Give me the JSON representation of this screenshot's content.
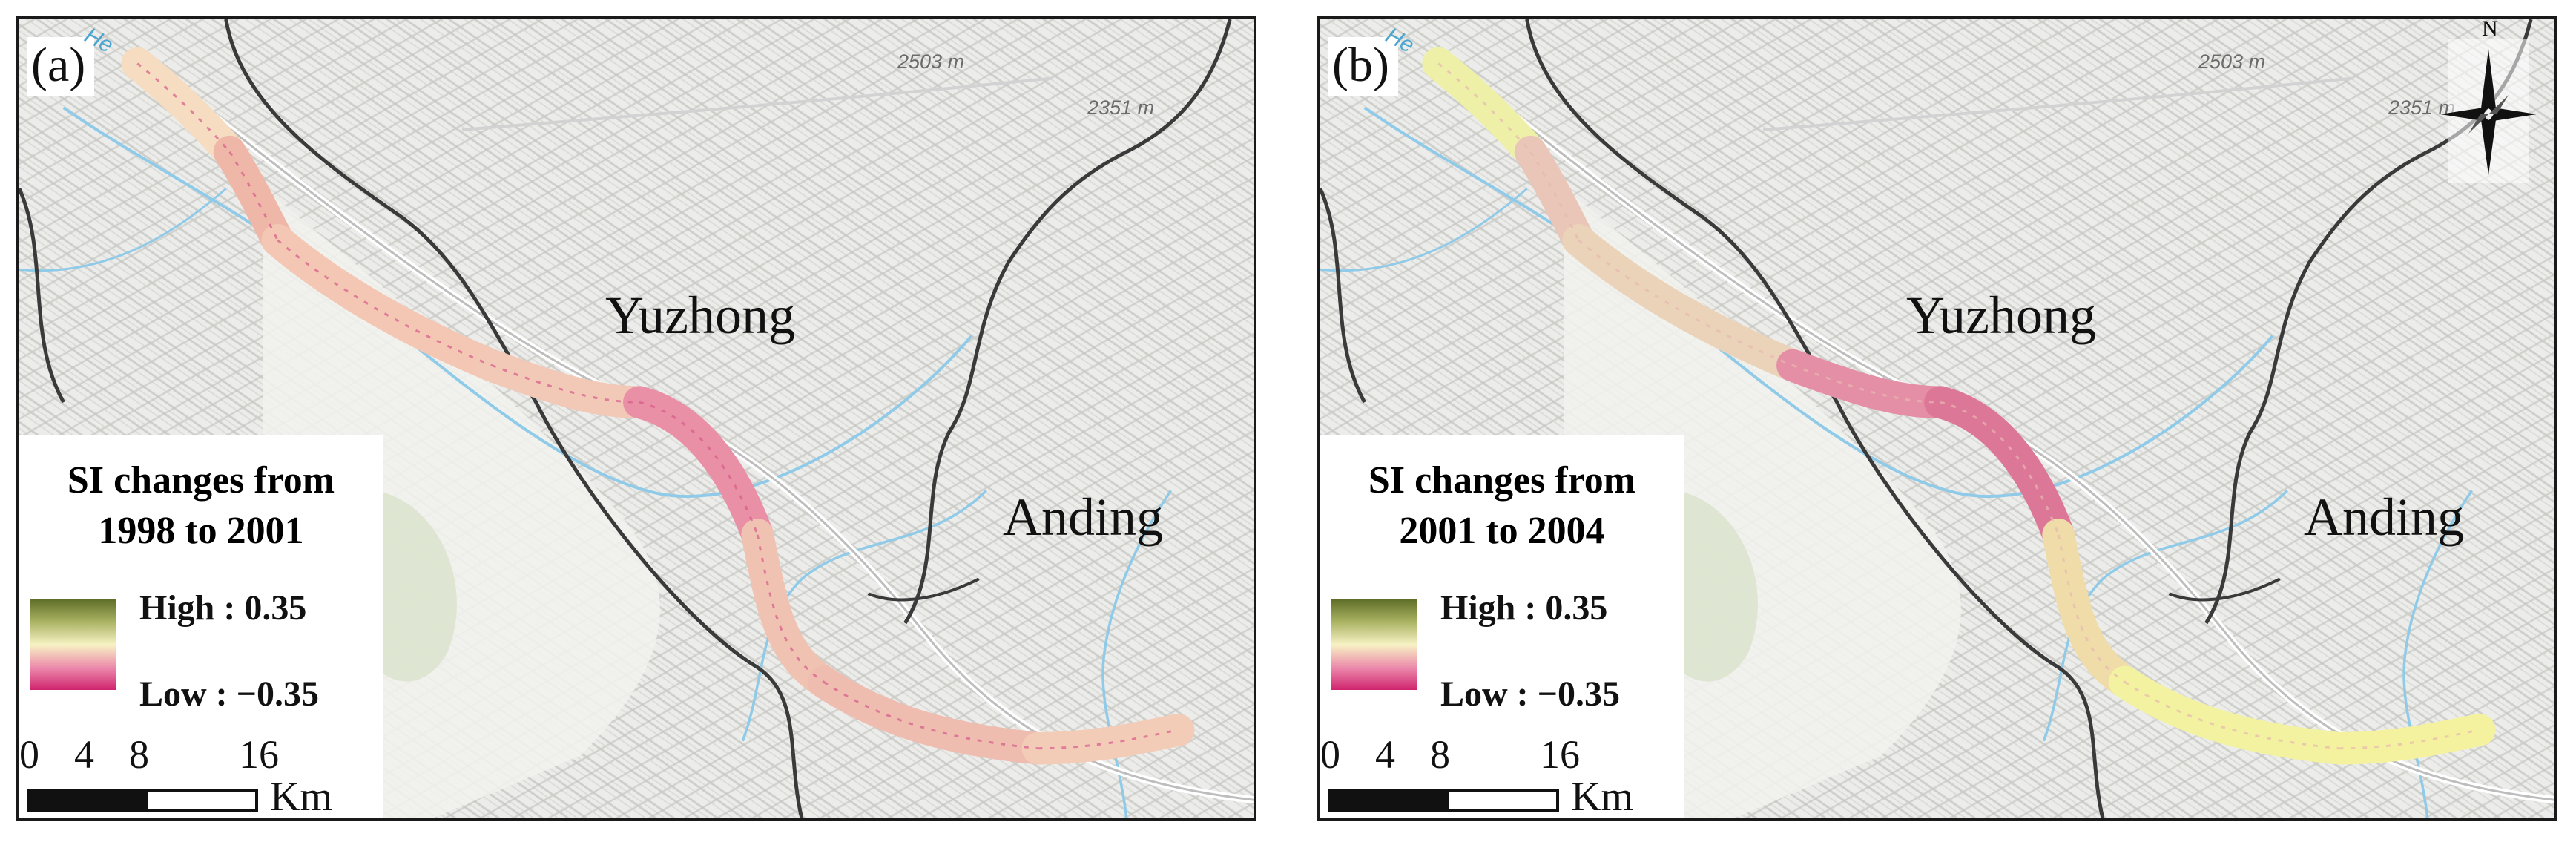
{
  "panels": [
    {
      "letter": "(a)",
      "legend": {
        "title_line1": "SI changes from",
        "title_line2": "1998 to 2001"
      },
      "route_colors": [
        "#f6dcc0",
        "#efb7a8",
        "#f3c7b3",
        "#f2c9b6",
        "#e98fa6",
        "#f0c2b2",
        "#efbcb0",
        "#f3ccb7"
      ]
    },
    {
      "letter": "(b)",
      "legend": {
        "title_line1": "SI changes from",
        "title_line2": "2001 to 2004"
      },
      "route_colors": [
        "#eef0a8",
        "#e9c6b8",
        "#ebd3b9",
        "#e48fa6",
        "#dd7797",
        "#efdca8",
        "#f2f2a0",
        "#f4f29f"
      ]
    }
  ],
  "places": {
    "yuzhong": "Yuzhong",
    "anding": "Anding"
  },
  "elevations": [
    "2503 m",
    "2351 m"
  ],
  "river_label": "He",
  "legend_common": {
    "high": "High : 0.35",
    "low": "Low : −0.35"
  },
  "scale": {
    "ticks": [
      "0",
      "4",
      "8",
      "16"
    ],
    "unit": "Km"
  },
  "north_label": "N",
  "colors": {
    "ramp_high": "#5f6e28",
    "ramp_mid": "#f7f2c4",
    "ramp_low": "#d0246e",
    "river": "#8fcbe8",
    "boundary": "#3a3a3a",
    "terrain": "#e7e7e3"
  }
}
